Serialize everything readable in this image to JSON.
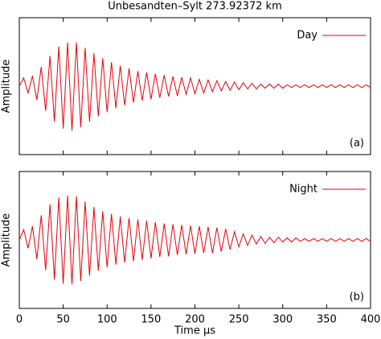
{
  "chart_data": [
    {
      "type": "line",
      "title": "Unbesandten–Sylt 273.92372 km",
      "ylabel": "Amplitude",
      "annotation": "(a)",
      "xlim": [
        0,
        400
      ],
      "xticks": [
        0,
        50,
        100,
        150,
        200,
        250,
        300,
        350,
        400
      ],
      "show_xtick_labels": false,
      "ylim": [
        -1,
        1
      ],
      "legend": "top-right",
      "x": [
        0,
        5,
        10,
        15,
        20,
        25,
        30,
        35,
        40,
        45,
        50,
        55,
        60,
        65,
        70,
        75,
        80,
        85,
        90,
        95,
        100,
        105,
        110,
        115,
        120,
        125,
        130,
        135,
        140,
        145,
        150,
        155,
        160,
        165,
        170,
        175,
        180,
        185,
        190,
        195,
        200,
        205,
        210,
        215,
        220,
        225,
        230,
        235,
        240,
        245,
        250,
        255,
        260,
        265,
        270,
        275,
        280,
        285,
        290,
        295,
        300,
        305,
        310,
        315,
        320,
        325,
        330,
        335,
        340,
        345,
        350,
        355,
        360,
        365,
        370,
        375,
        380,
        385,
        390,
        395,
        400
      ],
      "series": [
        {
          "name": "Day",
          "color": "#e8000b",
          "values": [
            0,
            0.12,
            -0.1,
            0.15,
            -0.2,
            0.28,
            -0.36,
            0.44,
            -0.52,
            0.58,
            -0.62,
            0.64,
            -0.65,
            0.64,
            -0.6,
            0.56,
            -0.52,
            0.48,
            -0.44,
            0.41,
            -0.38,
            0.35,
            -0.32,
            0.3,
            -0.28,
            0.26,
            -0.24,
            0.22,
            -0.21,
            0.2,
            -0.19,
            0.18,
            -0.17,
            0.16,
            -0.15,
            0.14,
            -0.14,
            0.13,
            -0.12,
            0.12,
            -0.11,
            0.1,
            -0.1,
            0.09,
            -0.08,
            0.08,
            -0.07,
            0.07,
            -0.06,
            0.06,
            -0.05,
            0.05,
            -0.04,
            0.04,
            -0.04,
            0.03,
            -0.03,
            0.03,
            -0.03,
            0.03,
            -0.03,
            0.02,
            -0.02,
            0.02,
            -0.02,
            0.02,
            -0.02,
            0.02,
            -0.02,
            0.02,
            -0.02,
            0.02,
            -0.02,
            0.02,
            -0.02,
            0.02,
            -0.02,
            0.02,
            -0.02,
            0.02,
            -0.02
          ]
        }
      ]
    },
    {
      "type": "line",
      "xlabel": "Time µs",
      "ylabel": "Amplitude",
      "annotation": "(b)",
      "xlim": [
        0,
        400
      ],
      "xticks": [
        0,
        50,
        100,
        150,
        200,
        250,
        300,
        350,
        400
      ],
      "show_xtick_labels": true,
      "ylim": [
        -1,
        1
      ],
      "legend": "top-right",
      "x": [
        0,
        5,
        10,
        15,
        20,
        25,
        30,
        35,
        40,
        45,
        50,
        55,
        60,
        65,
        70,
        75,
        80,
        85,
        90,
        95,
        100,
        105,
        110,
        115,
        120,
        125,
        130,
        135,
        140,
        145,
        150,
        155,
        160,
        165,
        170,
        175,
        180,
        185,
        190,
        195,
        200,
        205,
        210,
        215,
        220,
        225,
        230,
        235,
        240,
        245,
        250,
        255,
        260,
        265,
        270,
        275,
        280,
        285,
        290,
        295,
        300,
        305,
        310,
        315,
        320,
        325,
        330,
        335,
        340,
        345,
        350,
        355,
        360,
        365,
        370,
        375,
        380,
        385,
        390,
        395,
        400
      ],
      "series": [
        {
          "name": "Night",
          "color": "#e8000b",
          "values": [
            0,
            0.15,
            -0.12,
            0.2,
            -0.28,
            0.36,
            -0.44,
            0.52,
            -0.58,
            0.62,
            -0.64,
            0.65,
            -0.65,
            0.64,
            -0.6,
            0.56,
            -0.52,
            0.48,
            -0.45,
            0.42,
            -0.4,
            0.38,
            -0.36,
            0.34,
            -0.33,
            0.32,
            -0.31,
            0.3,
            -0.29,
            0.28,
            -0.27,
            0.26,
            -0.25,
            0.24,
            -0.24,
            0.23,
            -0.22,
            0.22,
            -0.21,
            0.21,
            -0.2,
            0.2,
            -0.19,
            0.19,
            -0.19,
            0.18,
            -0.17,
            0.16,
            -0.14,
            0.12,
            -0.1,
            0.09,
            -0.08,
            0.07,
            -0.06,
            0.05,
            -0.05,
            0.04,
            -0.04,
            0.04,
            -0.03,
            0.03,
            -0.03,
            0.03,
            -0.02,
            0.02,
            -0.02,
            0.02,
            -0.02,
            0.02,
            -0.02,
            0.02,
            -0.02,
            0.02,
            -0.02,
            0.02,
            -0.02,
            0.02,
            -0.02,
            0.02,
            -0.02
          ]
        }
      ]
    }
  ]
}
